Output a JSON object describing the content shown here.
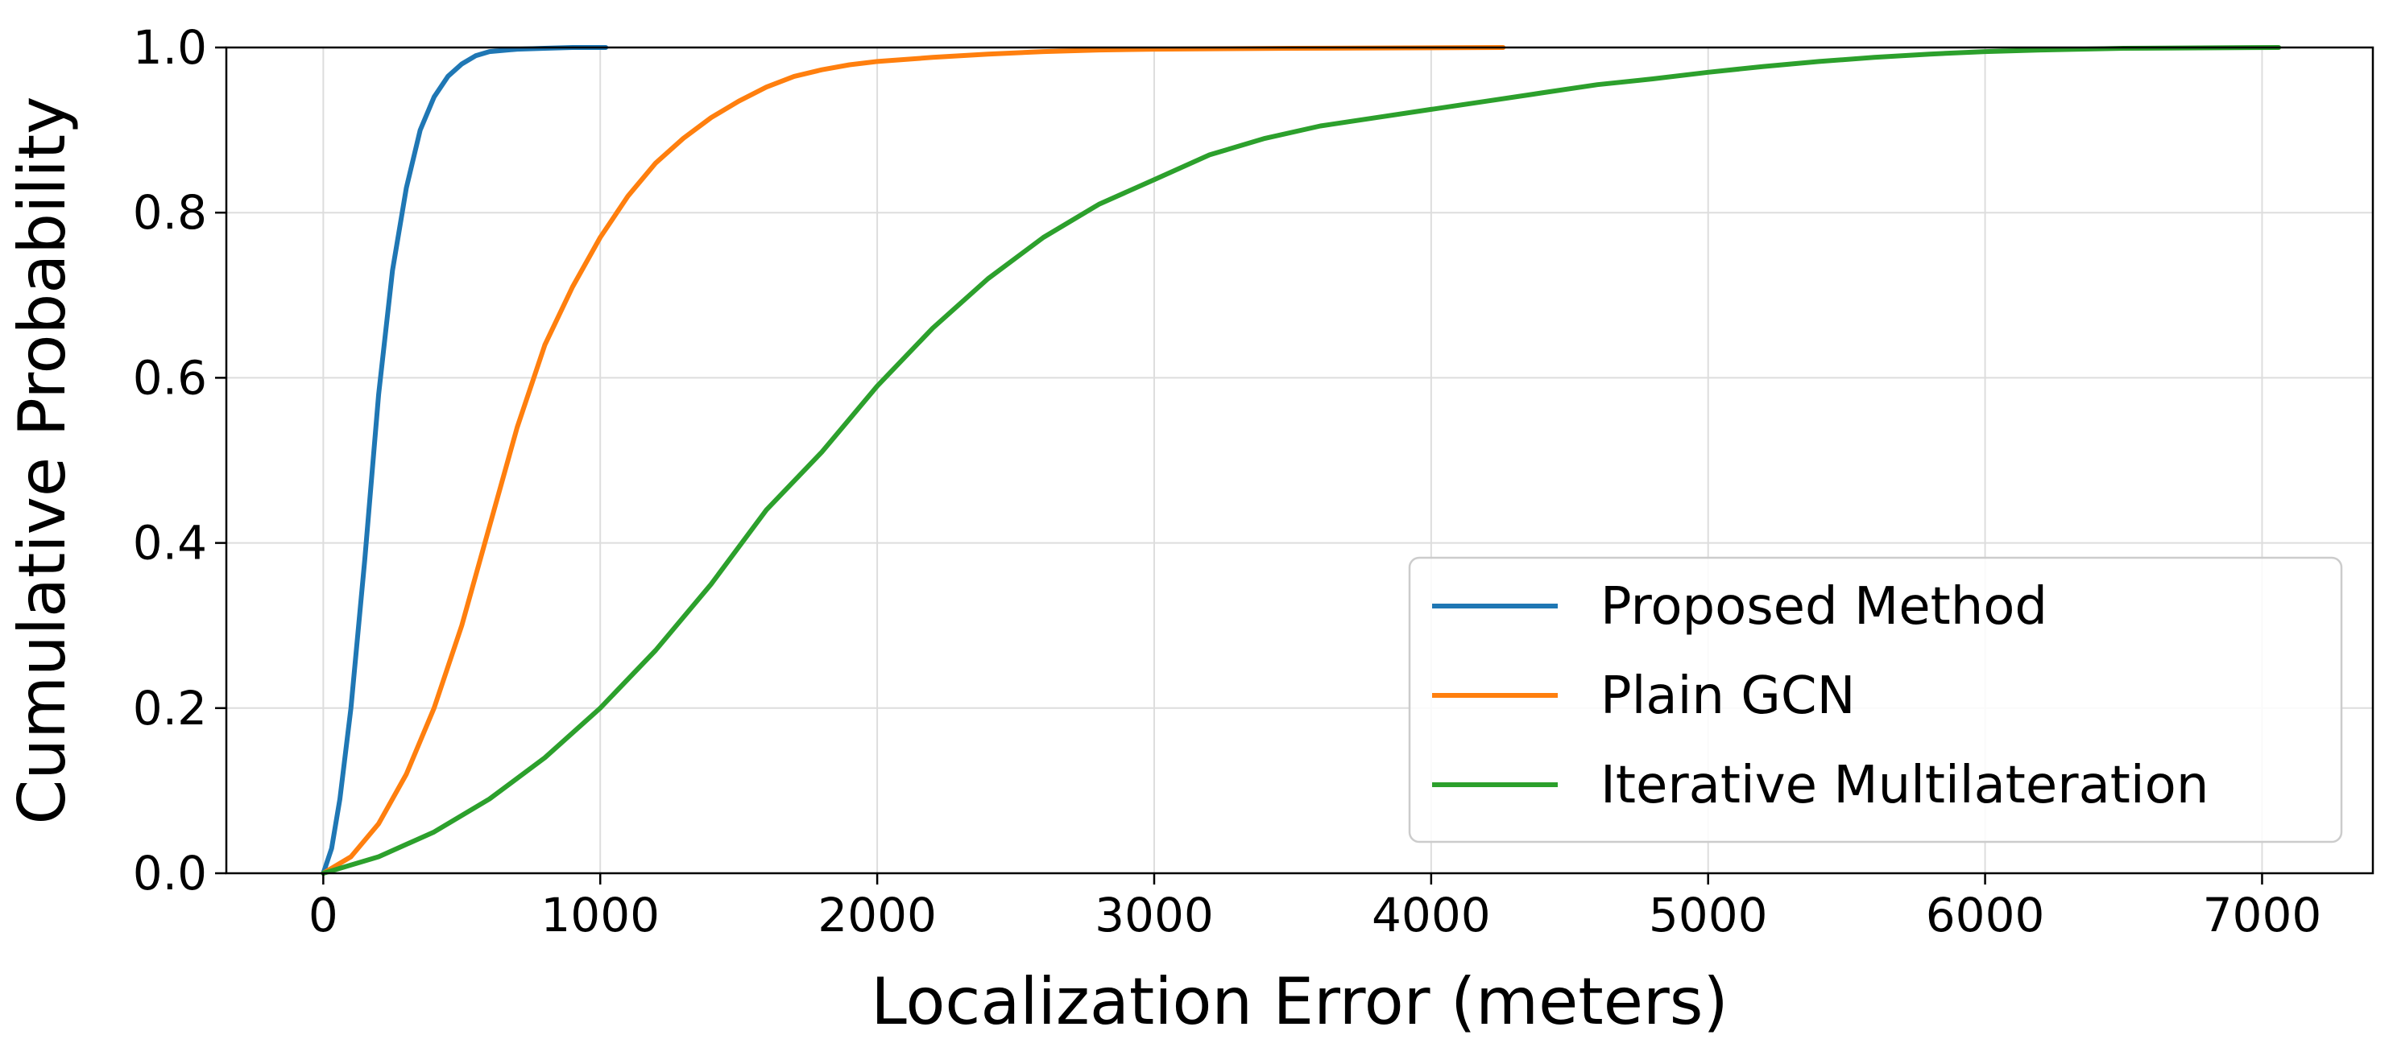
{
  "chart_data": {
    "type": "line",
    "title": "",
    "xlabel": "Localization Error (meters)",
    "ylabel": "Cumulative Probability",
    "xlim": [
      -350,
      7400
    ],
    "ylim": [
      0.0,
      1.0
    ],
    "xticks": [
      0,
      1000,
      2000,
      3000,
      4000,
      5000,
      6000,
      7000
    ],
    "xtick_labels": [
      "0",
      "1000",
      "2000",
      "3000",
      "4000",
      "5000",
      "6000",
      "7000"
    ],
    "yticks": [
      0.0,
      0.2,
      0.4,
      0.6,
      0.8,
      1.0
    ],
    "ytick_labels": [
      "0.0",
      "0.2",
      "0.4",
      "0.6",
      "0.8",
      "1.0"
    ],
    "grid": true,
    "legend_position": "lower-right",
    "series": [
      {
        "name": "Proposed Method",
        "color": "#1f77b4",
        "x": [
          0,
          30,
          60,
          100,
          150,
          200,
          250,
          300,
          350,
          400,
          450,
          500,
          550,
          600,
          700,
          800,
          900,
          1020
        ],
        "y": [
          0.0,
          0.03,
          0.09,
          0.2,
          0.38,
          0.58,
          0.73,
          0.83,
          0.9,
          0.94,
          0.965,
          0.98,
          0.99,
          0.995,
          0.998,
          0.999,
          1.0,
          1.0
        ]
      },
      {
        "name": "Plain GCN",
        "color": "#ff7f0e",
        "x": [
          0,
          100,
          200,
          300,
          400,
          500,
          600,
          700,
          800,
          900,
          1000,
          1100,
          1200,
          1300,
          1400,
          1500,
          1600,
          1700,
          1800,
          1900,
          2000,
          2200,
          2400,
          2600,
          2800,
          3000,
          3500,
          4260
        ],
        "y": [
          0.0,
          0.02,
          0.06,
          0.12,
          0.2,
          0.3,
          0.42,
          0.54,
          0.64,
          0.71,
          0.77,
          0.82,
          0.86,
          0.89,
          0.915,
          0.935,
          0.952,
          0.965,
          0.973,
          0.979,
          0.983,
          0.988,
          0.992,
          0.995,
          0.997,
          0.998,
          0.999,
          1.0
        ]
      },
      {
        "name": "Iterative Multilateration",
        "color": "#2ca02c",
        "x": [
          0,
          200,
          400,
          600,
          800,
          1000,
          1200,
          1400,
          1600,
          1800,
          2000,
          2200,
          2400,
          2600,
          2800,
          3000,
          3200,
          3400,
          3600,
          3800,
          4000,
          4200,
          4400,
          4600,
          4800,
          5000,
          5200,
          5400,
          5600,
          5800,
          6000,
          6200,
          6500,
          7060
        ],
        "y": [
          0.0,
          0.02,
          0.05,
          0.09,
          0.14,
          0.2,
          0.27,
          0.35,
          0.44,
          0.51,
          0.59,
          0.66,
          0.72,
          0.77,
          0.81,
          0.84,
          0.87,
          0.89,
          0.905,
          0.915,
          0.925,
          0.935,
          0.945,
          0.955,
          0.962,
          0.97,
          0.977,
          0.983,
          0.988,
          0.992,
          0.995,
          0.997,
          0.999,
          1.0
        ]
      }
    ]
  }
}
